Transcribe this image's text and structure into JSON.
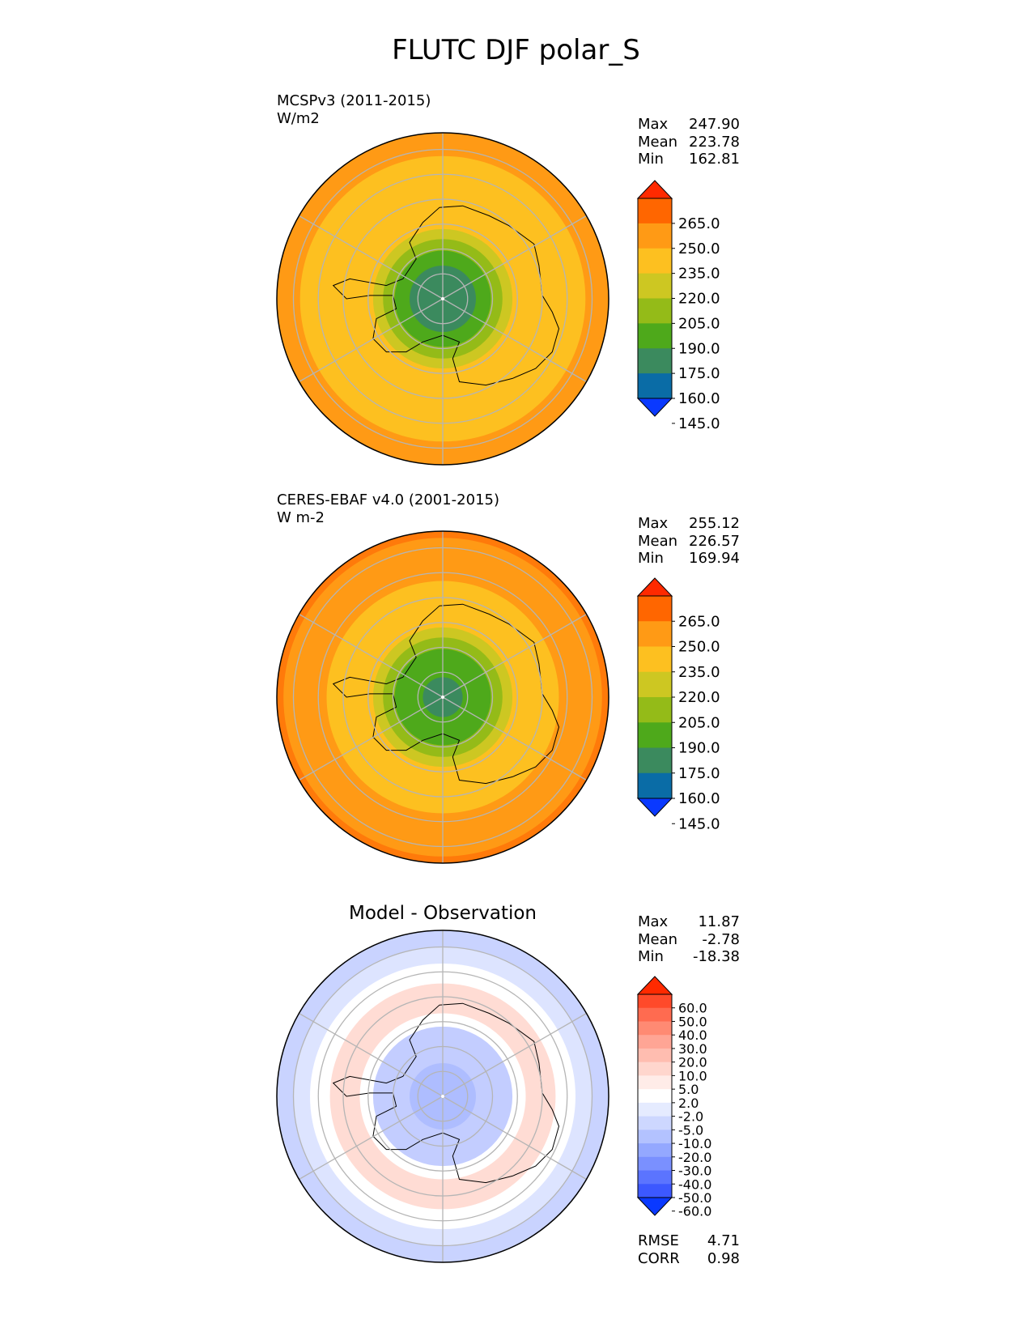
{
  "title": "FLUTC DJF polar_S",
  "chart_data": [
    {
      "type": "heatmap",
      "projection": "south polar stereographic",
      "title": "MCSPv3 (2011-2015)",
      "units": "W/m2",
      "stats": {
        "max": "247.90",
        "mean": "223.78",
        "min": "162.81"
      },
      "stat_labels": {
        "max": "Max",
        "mean": "Mean",
        "min": "Min"
      },
      "colorbar": {
        "ticks": [
          "265.0",
          "250.0",
          "235.0",
          "220.0",
          "205.0",
          "190.0",
          "175.0",
          "160.0",
          "145.0"
        ],
        "colors": [
          "#ff2a00",
          "#ff6600",
          "#ff9a15",
          "#fdc020",
          "#cdc722",
          "#94bb18",
          "#4ea91b",
          "#3b8a5e",
          "#0a6ca6",
          "#0a39ff"
        ],
        "extend": "both"
      },
      "field_rings": [
        {
          "color": "#ff9a15",
          "from_center": 1.0
        },
        {
          "color": "#fdc020",
          "from_center": 0.86
        },
        {
          "color": "#cdc722",
          "from_center": 0.42
        },
        {
          "color": "#94bb18",
          "from_center": 0.36
        },
        {
          "color": "#4ea91b",
          "from_center": 0.29
        },
        {
          "color": "#3b8a5e",
          "from_center": 0.2
        }
      ]
    },
    {
      "type": "heatmap",
      "projection": "south polar stereographic",
      "title": "CERES-EBAF v4.0 (2001-2015)",
      "units": "W m-2",
      "stats": {
        "max": "255.12",
        "mean": "226.57",
        "min": "169.94"
      },
      "stat_labels": {
        "max": "Max",
        "mean": "Mean",
        "min": "Min"
      },
      "colorbar": {
        "ticks": [
          "265.0",
          "250.0",
          "235.0",
          "220.0",
          "205.0",
          "190.0",
          "175.0",
          "160.0",
          "145.0"
        ],
        "colors": [
          "#ff2a00",
          "#ff6600",
          "#ff9a15",
          "#fdc020",
          "#cdc722",
          "#94bb18",
          "#4ea91b",
          "#3b8a5e",
          "#0a6ca6",
          "#0a39ff"
        ],
        "extend": "both"
      },
      "field_rings": [
        {
          "color": "#ff7a0a",
          "from_center": 1.0
        },
        {
          "color": "#ff9a15",
          "from_center": 0.96
        },
        {
          "color": "#fdc020",
          "from_center": 0.7
        },
        {
          "color": "#cdc722",
          "from_center": 0.42
        },
        {
          "color": "#94bb18",
          "from_center": 0.36
        },
        {
          "color": "#4ea91b",
          "from_center": 0.29
        },
        {
          "color": "#3b8a5e",
          "from_center": 0.12
        }
      ]
    },
    {
      "type": "heatmap",
      "projection": "south polar stereographic",
      "title": "Model - Observation",
      "stats": {
        "max": "11.87",
        "mean": "-2.78",
        "min": "-18.38"
      },
      "stat_labels": {
        "max": "Max",
        "mean": "Mean",
        "min": "Min"
      },
      "metrics": {
        "rmse": "4.71",
        "corr": "0.98"
      },
      "metric_labels": {
        "rmse": "RMSE",
        "corr": "CORR"
      },
      "colorbar": {
        "ticks": [
          "60.0",
          "50.0",
          "40.0",
          "30.0",
          "20.0",
          "10.0",
          "5.0",
          "2.0",
          "-2.0",
          "-5.0",
          "-10.0",
          "-20.0",
          "-30.0",
          "-40.0",
          "-50.0",
          "-60.0"
        ],
        "colors": [
          "#ff2a00",
          "#ff4a2a",
          "#ff6b50",
          "#ff8a73",
          "#ffa595",
          "#ffbdb0",
          "#ffd6cd",
          "#ffece8",
          "#ffffff",
          "#e5ebff",
          "#cdd7ff",
          "#b3c2ff",
          "#94a8ff",
          "#7a90ff",
          "#5b74ff",
          "#3c58ff",
          "#0a39ff"
        ],
        "extend": "both"
      },
      "field_rings": [
        {
          "color": "#c9d3ff",
          "from_center": 1.0
        },
        {
          "color": "#dde4ff",
          "from_center": 0.9
        },
        {
          "color": "#ffffff",
          "from_center": 0.8
        },
        {
          "color": "#ffdcd4",
          "from_center": 0.68
        },
        {
          "color": "#ffffff",
          "from_center": 0.5
        },
        {
          "color": "#c3cdff",
          "from_center": 0.42
        },
        {
          "color": "#aebdff",
          "from_center": 0.2
        }
      ]
    }
  ]
}
